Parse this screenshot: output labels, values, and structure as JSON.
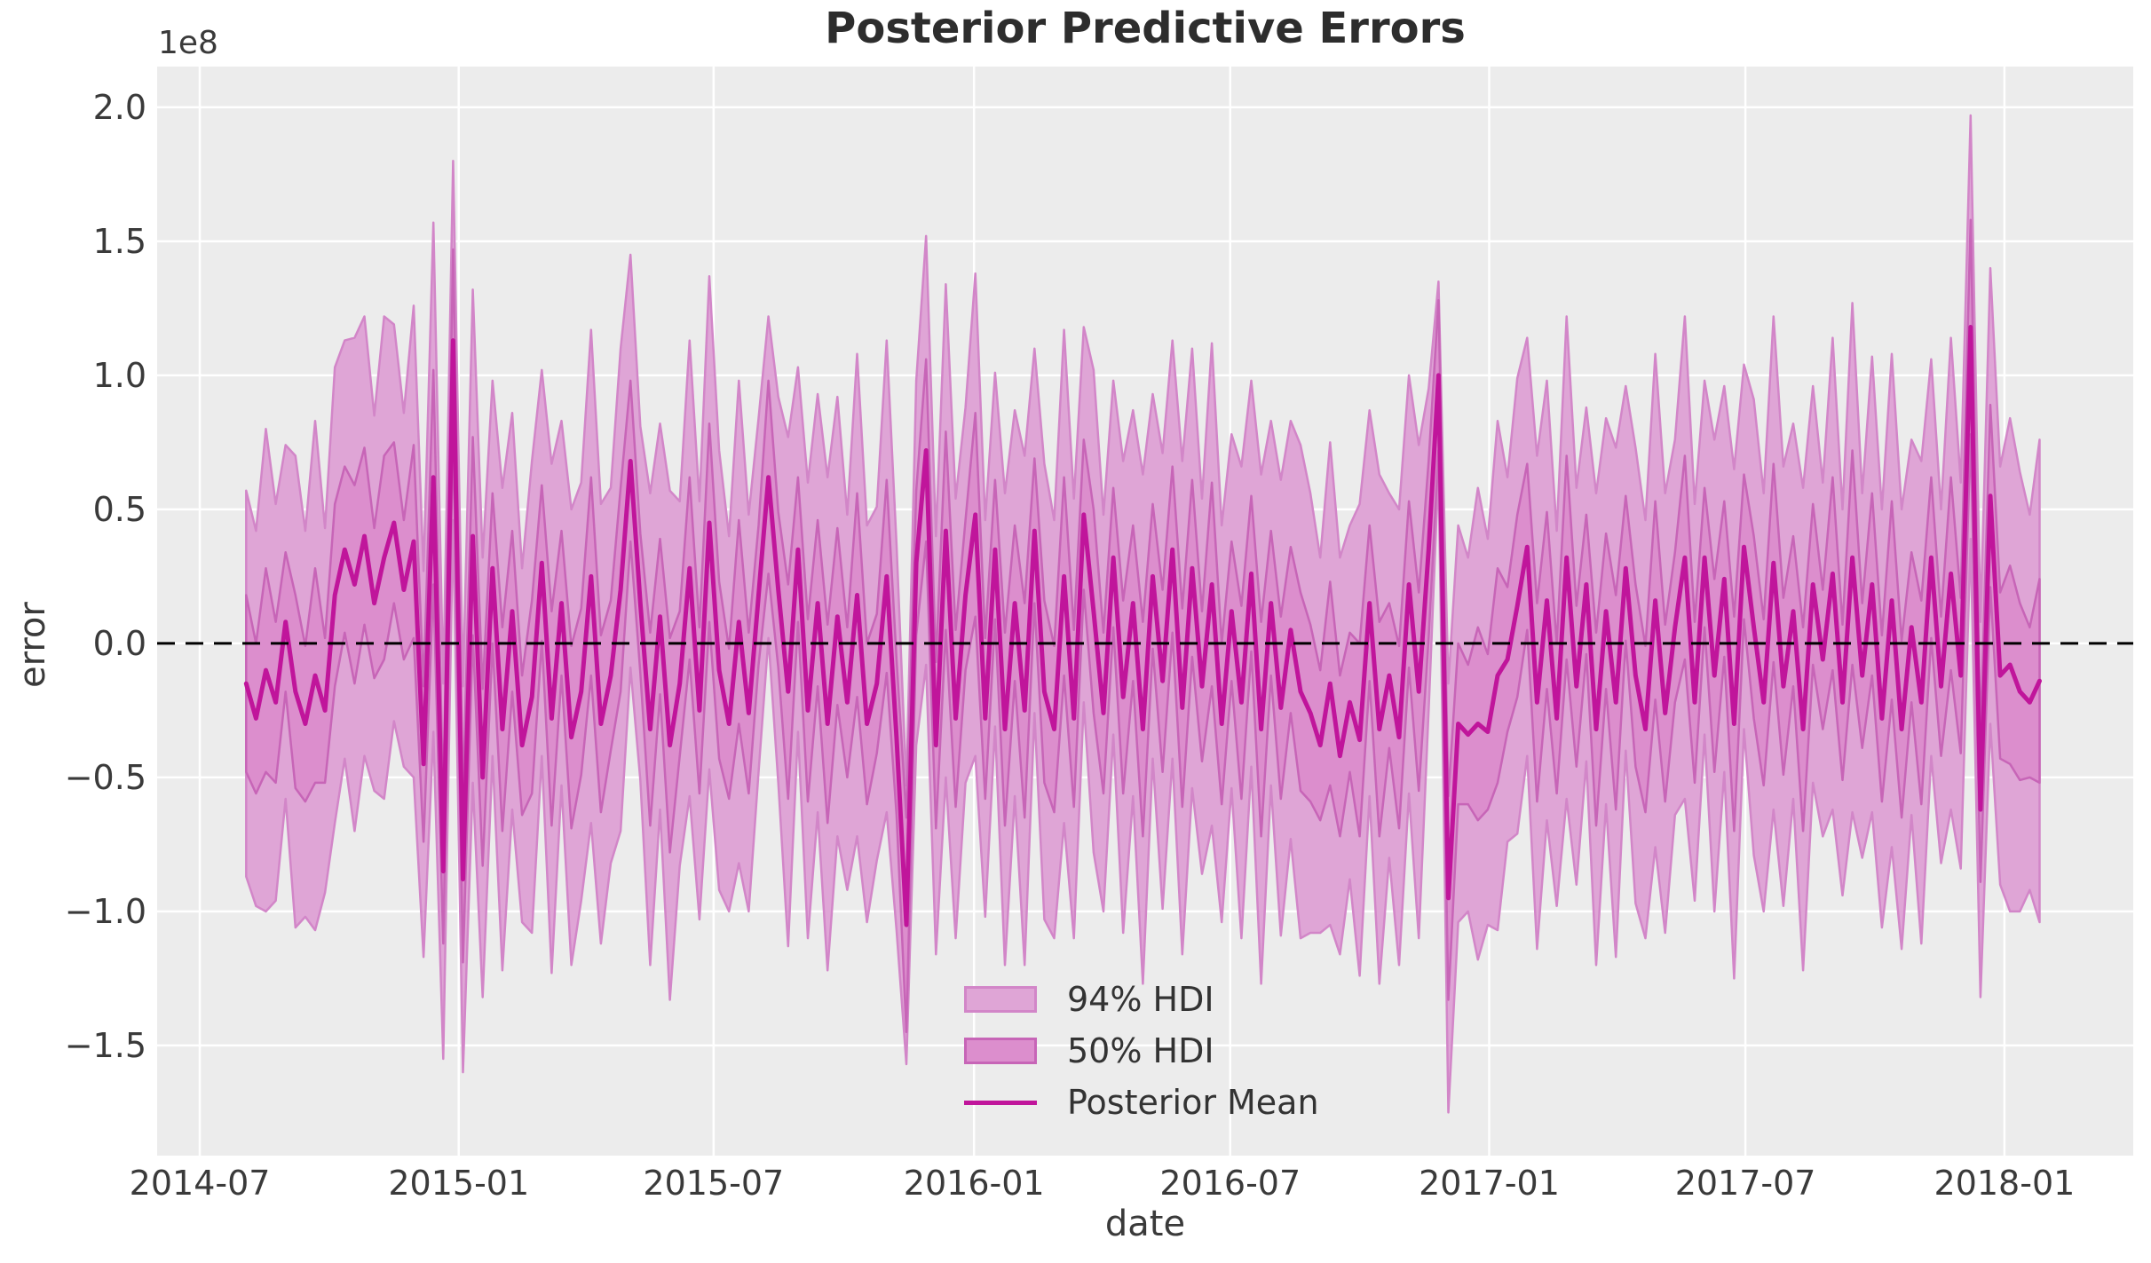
{
  "chart_data": {
    "type": "area",
    "title": "Posterior Predictive Errors",
    "xlabel": "date",
    "ylabel": "error",
    "y_scale_label": "1e8",
    "y_unit_multiplier": 100000000,
    "grid": true,
    "legend_position": "lower center",
    "background": {
      "figure": "#ffffff",
      "axes": "#ececec",
      "grid": "#ffffff"
    },
    "colors": {
      "hdi94_fill": "#dfa5d6",
      "hdi94_edge": "#d286c8",
      "hdi50_fill": "#dc8ecd",
      "hdi50_edge": "#c765b7",
      "mean_line": "#c0159b",
      "zero_line": "#000000",
      "text": "#3a3a3a"
    },
    "legend": [
      {
        "label": "94% HDI",
        "type": "patch",
        "color_key": "hdi94"
      },
      {
        "label": "50% HDI",
        "type": "patch",
        "color_key": "hdi50"
      },
      {
        "label": "Posterior Mean",
        "type": "line",
        "color_key": "mean_line"
      }
    ],
    "x_start_date": "2014-08-03",
    "x_step_days": 7,
    "x_ticks": [
      {
        "label": "2014-07",
        "week": -4.71
      },
      {
        "label": "2015-01",
        "week": 21.57
      },
      {
        "label": "2015-07",
        "week": 47.43
      },
      {
        "label": "2016-01",
        "week": 73.86
      },
      {
        "label": "2016-07",
        "week": 99.86
      },
      {
        "label": "2017-01",
        "week": 126.14
      },
      {
        "label": "2017-07",
        "week": 152.14
      },
      {
        "label": "2018-01",
        "week": 178.43
      }
    ],
    "y_ticks": [
      {
        "label": "2.0",
        "value": 2.0
      },
      {
        "label": "1.5",
        "value": 1.5
      },
      {
        "label": "1.0",
        "value": 1.0
      },
      {
        "label": "0.5",
        "value": 0.5
      },
      {
        "label": "0.0",
        "value": 0.0
      },
      {
        "label": "−0.5",
        "value": -0.5
      },
      {
        "label": "−1.0",
        "value": -1.0
      },
      {
        "label": "−1.5",
        "value": -1.5
      }
    ],
    "xlim_weeks": [
      -9.04,
      191.5
    ],
    "ylim": [
      -1.911,
      2.152
    ],
    "zero_line_y": 0,
    "series": {
      "posterior_mean": [
        -0.15,
        -0.28,
        -0.1,
        -0.22,
        0.08,
        -0.18,
        -0.3,
        -0.12,
        -0.25,
        0.18,
        0.35,
        0.22,
        0.4,
        0.15,
        0.32,
        0.45,
        0.2,
        0.38,
        -0.45,
        0.62,
        -0.85,
        1.13,
        -0.88,
        0.4,
        -0.5,
        0.28,
        -0.32,
        0.12,
        -0.38,
        -0.2,
        0.3,
        -0.28,
        0.15,
        -0.35,
        -0.18,
        0.25,
        -0.3,
        -0.12,
        0.2,
        0.68,
        0.15,
        -0.32,
        0.1,
        -0.38,
        -0.15,
        0.28,
        -0.25,
        0.45,
        -0.1,
        -0.3,
        0.08,
        -0.26,
        0.18,
        0.62,
        0.2,
        -0.18,
        0.35,
        -0.25,
        0.15,
        -0.3,
        0.1,
        -0.22,
        0.18,
        -0.3,
        -0.15,
        0.25,
        -0.35,
        -1.05,
        0.3,
        0.72,
        -0.38,
        0.42,
        -0.28,
        0.18,
        0.48,
        -0.28,
        0.35,
        -0.32,
        0.15,
        -0.25,
        0.42,
        -0.18,
        -0.32,
        0.25,
        -0.28,
        0.48,
        0.12,
        -0.26,
        0.32,
        -0.2,
        0.15,
        -0.32,
        0.25,
        -0.14,
        0.35,
        -0.24,
        0.28,
        -0.16,
        0.22,
        -0.3,
        0.12,
        -0.22,
        0.26,
        -0.32,
        0.15,
        -0.24,
        0.05,
        -0.18,
        -0.26,
        -0.38,
        -0.15,
        -0.42,
        -0.22,
        -0.36,
        0.15,
        -0.32,
        -0.12,
        -0.35,
        0.22,
        -0.18,
        0.35,
        1.0,
        -0.95,
        -0.3,
        -0.34,
        -0.3,
        -0.33,
        -0.12,
        -0.06,
        0.14,
        0.36,
        -0.22,
        0.16,
        -0.28,
        0.32,
        -0.16,
        0.22,
        -0.32,
        0.12,
        -0.22,
        0.28,
        -0.12,
        -0.32,
        0.16,
        -0.26,
        0.06,
        0.32,
        -0.22,
        0.32,
        -0.12,
        0.24,
        -0.3,
        0.36,
        0.06,
        -0.22,
        0.3,
        -0.16,
        0.12,
        -0.32,
        0.22,
        -0.06,
        0.26,
        -0.22,
        0.32,
        -0.12,
        0.22,
        -0.28,
        0.16,
        -0.32,
        0.06,
        -0.22,
        0.32,
        -0.16,
        0.26,
        -0.12,
        1.18,
        -0.62,
        0.55,
        -0.12,
        -0.08,
        -0.18,
        -0.22,
        -0.14
      ],
      "hdi94_halfwidth": [
        0.72,
        0.7,
        0.9,
        0.74,
        0.66,
        0.88,
        0.72,
        0.95,
        0.68,
        0.85,
        0.78,
        0.92,
        0.82,
        0.7,
        0.9,
        0.74,
        0.66,
        0.88,
        0.72,
        0.95,
        0.7,
        0.67,
        0.72,
        0.92,
        0.82,
        0.7,
        0.9,
        0.74,
        0.66,
        0.88,
        0.72,
        0.95,
        0.68,
        0.85,
        0.78,
        0.92,
        0.82,
        0.7,
        0.9,
        0.77,
        0.66,
        0.88,
        0.72,
        0.95,
        0.68,
        0.85,
        0.78,
        0.92,
        0.82,
        0.7,
        0.9,
        0.74,
        0.66,
        0.6,
        0.72,
        0.95,
        0.68,
        0.85,
        0.78,
        0.92,
        0.82,
        0.7,
        0.9,
        0.74,
        0.66,
        0.88,
        0.72,
        0.52,
        0.68,
        0.8,
        0.78,
        0.92,
        0.82,
        0.7,
        0.9,
        0.74,
        0.66,
        0.88,
        0.72,
        0.95,
        0.68,
        0.85,
        0.78,
        0.92,
        0.82,
        0.7,
        0.9,
        0.74,
        0.66,
        0.88,
        0.72,
        0.95,
        0.68,
        0.85,
        0.78,
        0.92,
        0.82,
        0.7,
        0.9,
        0.74,
        0.66,
        0.88,
        0.72,
        0.95,
        0.68,
        0.85,
        0.78,
        0.92,
        0.82,
        0.7,
        0.9,
        0.74,
        0.66,
        0.88,
        0.72,
        0.95,
        0.68,
        0.85,
        0.78,
        0.92,
        0.6,
        0.35,
        0.8,
        0.74,
        0.66,
        0.88,
        0.72,
        0.95,
        0.68,
        0.85,
        0.78,
        0.92,
        0.82,
        0.7,
        0.9,
        0.74,
        0.66,
        0.88,
        0.72,
        0.95,
        0.68,
        0.85,
        0.78,
        0.92,
        0.82,
        0.7,
        0.9,
        0.74,
        0.66,
        0.88,
        0.72,
        0.95,
        0.68,
        0.85,
        0.78,
        0.92,
        0.82,
        0.7,
        0.9,
        0.74,
        0.66,
        0.88,
        0.72,
        0.95,
        0.68,
        0.85,
        0.78,
        0.92,
        0.82,
        0.7,
        0.9,
        0.74,
        0.66,
        0.88,
        0.72,
        0.79,
        0.7,
        0.85,
        0.78,
        0.92,
        0.82,
        0.7,
        0.9
      ],
      "hdi50_halfwidth": [
        0.33,
        0.28,
        0.38,
        0.3,
        0.26,
        0.36,
        0.29,
        0.4,
        0.27,
        0.34,
        0.31,
        0.37,
        0.33,
        0.28,
        0.38,
        0.3,
        0.26,
        0.36,
        0.29,
        0.4,
        0.27,
        0.34,
        0.31,
        0.37,
        0.33,
        0.28,
        0.38,
        0.3,
        0.26,
        0.36,
        0.29,
        0.4,
        0.27,
        0.34,
        0.31,
        0.37,
        0.33,
        0.28,
        0.38,
        0.3,
        0.26,
        0.36,
        0.29,
        0.4,
        0.27,
        0.34,
        0.31,
        0.37,
        0.33,
        0.28,
        0.38,
        0.3,
        0.26,
        0.36,
        0.29,
        0.4,
        0.27,
        0.34,
        0.31,
        0.37,
        0.33,
        0.28,
        0.38,
        0.3,
        0.26,
        0.36,
        0.29,
        0.4,
        0.27,
        0.34,
        0.31,
        0.37,
        0.33,
        0.28,
        0.38,
        0.3,
        0.26,
        0.36,
        0.29,
        0.4,
        0.27,
        0.34,
        0.31,
        0.37,
        0.33,
        0.28,
        0.38,
        0.3,
        0.26,
        0.36,
        0.29,
        0.4,
        0.27,
        0.34,
        0.31,
        0.37,
        0.33,
        0.28,
        0.38,
        0.3,
        0.26,
        0.36,
        0.29,
        0.4,
        0.27,
        0.34,
        0.31,
        0.37,
        0.33,
        0.28,
        0.38,
        0.3,
        0.26,
        0.36,
        0.29,
        0.4,
        0.27,
        0.34,
        0.31,
        0.37,
        0.33,
        0.28,
        0.38,
        0.3,
        0.26,
        0.36,
        0.29,
        0.4,
        0.27,
        0.34,
        0.31,
        0.37,
        0.33,
        0.28,
        0.38,
        0.3,
        0.26,
        0.36,
        0.29,
        0.4,
        0.27,
        0.34,
        0.31,
        0.37,
        0.33,
        0.28,
        0.38,
        0.3,
        0.26,
        0.36,
        0.29,
        0.4,
        0.27,
        0.34,
        0.31,
        0.37,
        0.33,
        0.28,
        0.38,
        0.3,
        0.26,
        0.36,
        0.29,
        0.4,
        0.27,
        0.34,
        0.31,
        0.37,
        0.33,
        0.28,
        0.38,
        0.3,
        0.26,
        0.36,
        0.29,
        0.4,
        0.27,
        0.34,
        0.31,
        0.37,
        0.33,
        0.28,
        0.38
      ]
    }
  }
}
